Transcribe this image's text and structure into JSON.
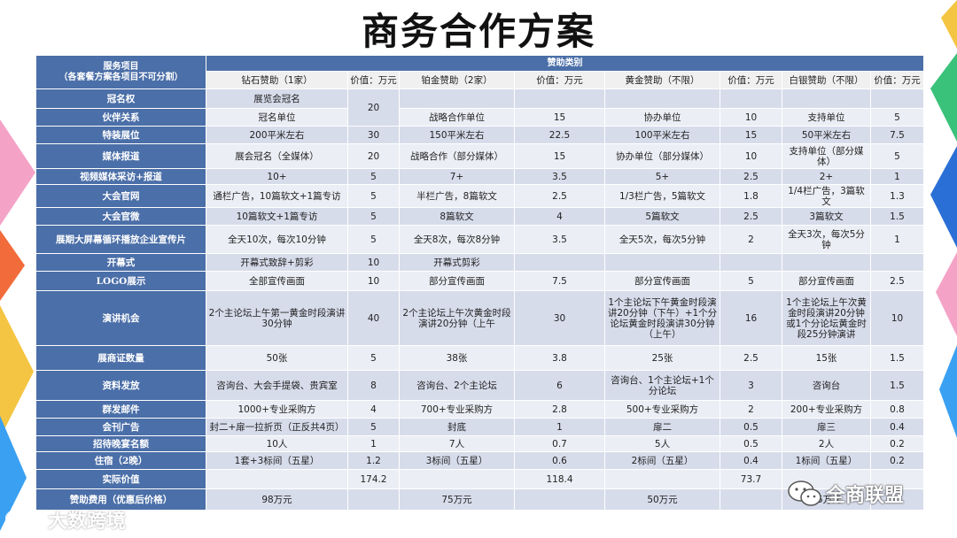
{
  "title": "商务合作方案",
  "header": {
    "service_label": "服务项目\n（各套餐方案各项目不可分割）",
    "category_label": "赞助类别",
    "tiers": [
      "钻石赞助（1家）",
      "铂金赞助（2家）",
      "黄金赞助（不限）",
      "白银赞助（不限）"
    ],
    "value_label": "价值：万元"
  },
  "rows": [
    {
      "label": "冠名权",
      "d": "展览会冠名",
      "dv": "20",
      "p": "",
      "pv": "",
      "g": "",
      "gv": "",
      "s": "",
      "sv": ""
    },
    {
      "label": "伙伴关系",
      "d": "冠名单位",
      "dv": "",
      "p": "战略合作单位",
      "pv": "15",
      "g": "协办单位",
      "gv": "10",
      "s": "支持单位",
      "sv": "5"
    },
    {
      "label": "特装展位",
      "d": "200平米左右",
      "dv": "30",
      "p": "150平米左右",
      "pv": "22.5",
      "g": "100平米左右",
      "gv": "15",
      "s": "50平米左右",
      "sv": "7.5"
    },
    {
      "label": "媒体报道",
      "d": "展会冠名（全媒体）",
      "dv": "20",
      "p": "战略合作（部分媒体）",
      "pv": "15",
      "g": "协办单位（部分媒体）",
      "gv": "10",
      "s": "支持单位（部分媒体）",
      "sv": "5"
    },
    {
      "label": "视频媒体采访+报道",
      "d": "10+",
      "dv": "5",
      "p": "7+",
      "pv": "3.5",
      "g": "5+",
      "gv": "2.5",
      "s": "2+",
      "sv": "1"
    },
    {
      "label": "大会官网",
      "d": "通栏广告，10篇软文+1篇专访",
      "dv": "5",
      "p": "半栏广告，8篇软文",
      "pv": "2.5",
      "g": "1/3栏广告，5篇软文",
      "gv": "1.8",
      "s": "1/4栏广告，3篇软文",
      "sv": "1.3"
    },
    {
      "label": "大会官微",
      "d": "10篇软文+1篇专访",
      "dv": "5",
      "p": "8篇软文",
      "pv": "4",
      "g": "5篇软文",
      "gv": "2.5",
      "s": "3篇软文",
      "sv": "1.5"
    },
    {
      "label": "展期大屏幕循环播放企业宣传片",
      "d": "全天10次，每次10分钟",
      "dv": "5",
      "p": "全天8次，每次8分钟",
      "pv": "3.5",
      "g": "全天5次，每次5分钟",
      "gv": "2",
      "s": "全天3次，每次5分钟",
      "sv": "1"
    },
    {
      "label": "开幕式",
      "d": "开幕式致辞+剪彩",
      "dv": "10",
      "p": "开幕式剪彩",
      "pv": "",
      "g": "",
      "gv": "",
      "s": "",
      "sv": ""
    },
    {
      "label": "LOGO展示",
      "d": "全部宣传画面",
      "dv": "10",
      "p": "部分宣传画面",
      "pv": "7.5",
      "g": "部分宣传画面",
      "gv": "5",
      "s": "部分宣传画面",
      "sv": "2.5"
    },
    {
      "label": "演讲机会",
      "d": "2个主论坛上午第一黄金时段演讲30分钟",
      "dv": "40",
      "p": "2个主论坛上午次黄金时段演讲20分钟（上午",
      "pv": "30",
      "g": "1个主论坛下午黄金时段演讲20分钟（下午）+1个分论坛黄金时段演讲30分钟（上午）",
      "gv": "16",
      "s": "1个主论坛上午次黄金时段演讲20分钟或1个分论坛黄金时段25分钟演讲",
      "sv": "10"
    },
    {
      "label": "展商证数量",
      "d": "50张",
      "dv": "5",
      "p": "38张",
      "pv": "3.8",
      "g": "25张",
      "gv": "2.5",
      "s": "15张",
      "sv": "1.5"
    },
    {
      "label": "资料发放",
      "d": "咨询台、大会手提袋、贵宾室",
      "dv": "8",
      "p": "咨询台、2个主论坛",
      "pv": "6",
      "g": "咨询台、1个主论坛+1个分论坛",
      "gv": "3",
      "s": "咨询台",
      "sv": "1.5"
    },
    {
      "label": "群发邮件",
      "d": "1000+专业采购方",
      "dv": "4",
      "p": "700+专业采购方",
      "pv": "2.8",
      "g": "500+专业采购方",
      "gv": "2",
      "s": "200+专业采购方",
      "sv": "0.8"
    },
    {
      "label": "会刊广告",
      "d": "封二+扉一拉折页（正反共4页）",
      "dv": "5",
      "p": "封底",
      "pv": "1",
      "g": "扉二",
      "gv": "0.5",
      "s": "扉三",
      "sv": "0.4"
    },
    {
      "label": "招待晚宴名额",
      "d": "10人",
      "dv": "1",
      "p": "7人",
      "pv": "0.7",
      "g": "5人",
      "gv": "0.5",
      "s": "2人",
      "sv": "0.2"
    },
    {
      "label": "住宿（2晚）",
      "d": "1套+3标间（五星）",
      "dv": "1.2",
      "p": "3标间（五星）",
      "pv": "0.6",
      "g": "2标间（五星）",
      "gv": "0.4",
      "s": "1标间（五星）",
      "sv": "0.2"
    },
    {
      "label": "实际价值",
      "d": "",
      "dv": "174.2",
      "p": "",
      "pv": "118.4",
      "g": "",
      "gv": "73.7",
      "s": "",
      "sv": ""
    },
    {
      "label": "赞助费用（优惠后价格）",
      "d": "98万元",
      "dv": "",
      "p": "75万元",
      "pv": "",
      "g": "50万元",
      "gv": "",
      "s": "25万元",
      "sv": ""
    }
  ],
  "watermarks": {
    "left": "大数跨境",
    "right": "全商联盟"
  }
}
